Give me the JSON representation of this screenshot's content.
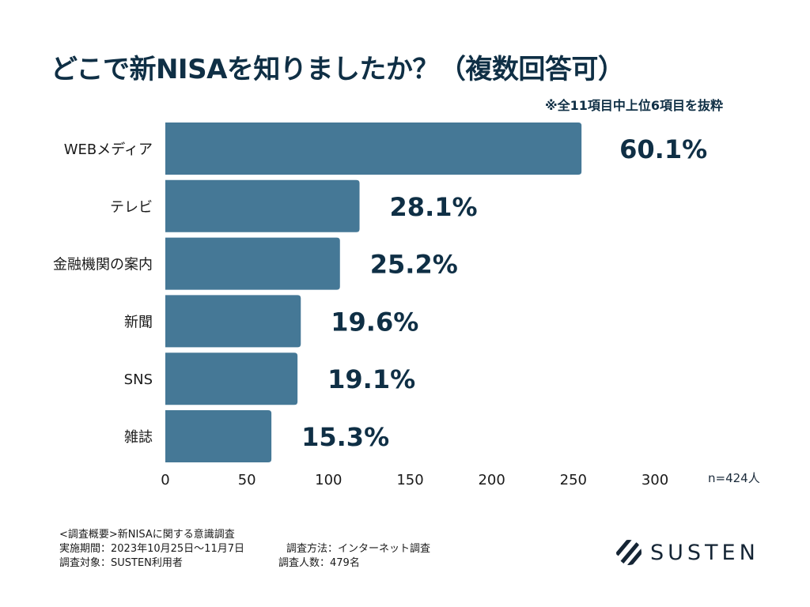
{
  "title": "どこで新NISAを知りましたか？（複数回答可）",
  "note": "※全11項目中上位6項目を抜粋",
  "sample_size": "n=424人",
  "colors": {
    "bar": "#457896",
    "text": "#0f2f45"
  },
  "chart_data": {
    "type": "bar",
    "orientation": "horizontal",
    "title": "どこで新NISAを知りましたか？（複数回答可）",
    "categories": [
      "WEBメディア",
      "テレビ",
      "金融機関の案内",
      "新聞",
      "SNS",
      "雑誌"
    ],
    "values": [
      255,
      119,
      107,
      83,
      81,
      65
    ],
    "labels": [
      "60.1%",
      "28.1%",
      "25.2%",
      "19.6%",
      "19.1%",
      "15.3%"
    ],
    "xlim": [
      0,
      300
    ],
    "xticks": [
      "0",
      "50",
      "100",
      "150",
      "200",
      "250",
      "300"
    ],
    "xlabel": "",
    "ylabel": "",
    "grid": false
  },
  "footer": {
    "line1": "<調査概要>新NISAに関する意識調査",
    "period": "実施期間：2023年10月25日〜11月7日",
    "method": "調査方法：インターネット調査",
    "target": "調査対象：SUSTEN利用者",
    "count": "調査人数：479名"
  },
  "logo": {
    "text": "SUSTEN",
    "icon": "susten-logo-icon"
  }
}
